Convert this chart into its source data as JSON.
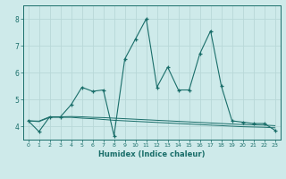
{
  "title": "",
  "xlabel": "Humidex (Indice chaleur)",
  "ylabel": "",
  "background_color": "#ceeaea",
  "grid_color": "#b8d8d8",
  "line_color": "#1a6e6a",
  "xlim": [
    -0.5,
    23.5
  ],
  "ylim": [
    3.5,
    8.5
  ],
  "yticks": [
    4,
    5,
    6,
    7,
    8
  ],
  "xticks": [
    0,
    1,
    2,
    3,
    4,
    5,
    6,
    7,
    8,
    9,
    10,
    11,
    12,
    13,
    14,
    15,
    16,
    17,
    18,
    19,
    20,
    21,
    22,
    23
  ],
  "series1_x": [
    0,
    1,
    2,
    3,
    4,
    5,
    6,
    7,
    8,
    9,
    10,
    11,
    12,
    13,
    14,
    15,
    16,
    17,
    18,
    19,
    20,
    21,
    22,
    23
  ],
  "series1_y": [
    4.2,
    3.8,
    4.35,
    4.35,
    4.8,
    5.45,
    5.3,
    5.35,
    3.65,
    6.5,
    7.25,
    8.0,
    5.45,
    6.2,
    5.35,
    5.35,
    6.7,
    7.55,
    5.5,
    4.2,
    4.15,
    4.1,
    4.1,
    3.85
  ],
  "series2_x": [
    0,
    1,
    2,
    3,
    4,
    5,
    6,
    7,
    8,
    9,
    10,
    11,
    12,
    13,
    14,
    15,
    16,
    17,
    18,
    19,
    20,
    21,
    22,
    23
  ],
  "series2_y": [
    4.2,
    4.17,
    4.33,
    4.33,
    4.33,
    4.3,
    4.28,
    4.25,
    4.22,
    4.2,
    4.18,
    4.16,
    4.14,
    4.12,
    4.1,
    4.08,
    4.06,
    4.04,
    4.02,
    4.0,
    3.98,
    3.97,
    3.96,
    3.94
  ],
  "series3_x": [
    0,
    1,
    2,
    3,
    4,
    5,
    6,
    7,
    8,
    9,
    10,
    11,
    12,
    13,
    14,
    15,
    16,
    17,
    18,
    19,
    20,
    21,
    22,
    23
  ],
  "series3_y": [
    4.2,
    4.19,
    4.35,
    4.35,
    4.36,
    4.35,
    4.33,
    4.32,
    4.3,
    4.28,
    4.26,
    4.24,
    4.22,
    4.2,
    4.18,
    4.16,
    4.14,
    4.12,
    4.1,
    4.08,
    4.06,
    4.05,
    4.04,
    4.02
  ],
  "figsize": [
    3.2,
    2.0
  ],
  "dpi": 100
}
